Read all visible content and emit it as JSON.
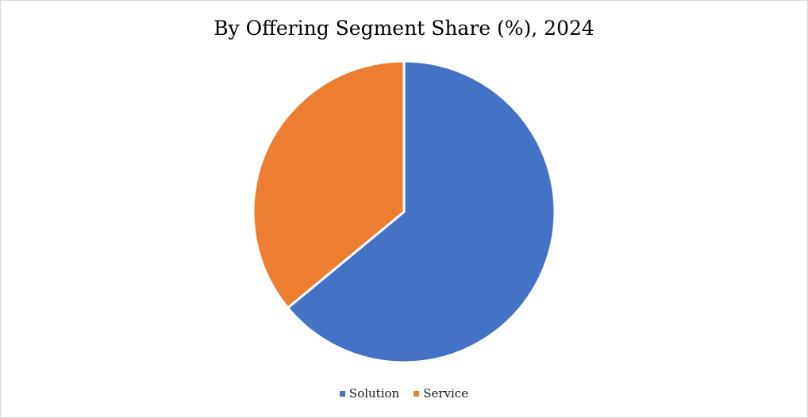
{
  "chart_data": {
    "type": "pie",
    "title": "By Offering Segment Share (%), 2024",
    "categories": [
      "Solution",
      "Service"
    ],
    "values": [
      64,
      36
    ],
    "colors": [
      "#4472C4",
      "#ED7D31"
    ],
    "start_angle_deg": 0,
    "direction": "clockwise",
    "legend_position": "bottom",
    "slice_border_color": "#ffffff"
  }
}
